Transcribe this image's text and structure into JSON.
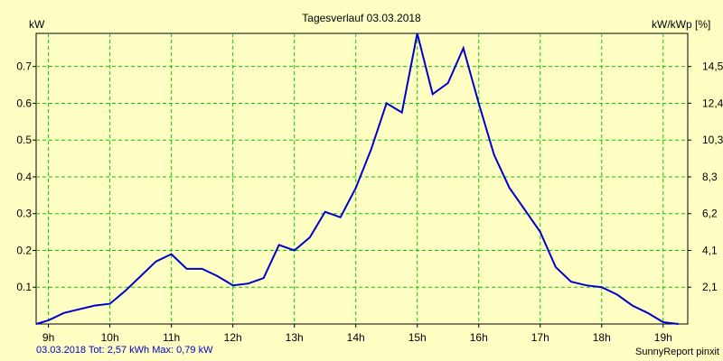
{
  "chart_data": {
    "type": "line",
    "title": "Tagesverlauf 03.03.2018",
    "ylabel_left": "kW",
    "ylabel_right": "kW/kWp [%]",
    "x_ticks": [
      "9h",
      "10h",
      "11h",
      "12h",
      "13h",
      "14h",
      "15h",
      "16h",
      "17h",
      "18h",
      "19h"
    ],
    "x_range_hours": [
      8.8,
      19.4
    ],
    "y_left_ticks": [
      "0.1",
      "0.2",
      "0.3",
      "0.4",
      "0.5",
      "0.6",
      "0.7"
    ],
    "y_left_range": [
      0,
      0.79
    ],
    "y_right_ticks": [
      "2,1",
      "4,1",
      "6,2",
      "8,3",
      "10,3",
      "12,4",
      "14,5"
    ],
    "grid": true,
    "series_color": "#0000cc",
    "grid_color": "#00cc00",
    "series": [
      {
        "x": [
          8.8,
          9.0,
          9.25,
          9.5,
          9.75,
          10.0,
          10.25,
          10.5,
          10.75,
          11.0,
          11.25,
          11.5,
          11.75,
          12.0,
          12.25,
          12.5,
          12.75,
          13.0,
          13.25,
          13.5,
          13.75,
          14.0,
          14.25,
          14.5,
          14.75,
          15.0,
          15.25,
          15.5,
          15.75,
          16.0,
          16.25,
          16.5,
          16.75,
          17.0,
          17.25,
          17.5,
          17.75,
          18.0,
          18.25,
          18.5,
          18.75,
          19.0,
          19.25
        ],
        "y": [
          0.0,
          0.01,
          0.03,
          0.04,
          0.05,
          0.055,
          0.09,
          0.13,
          0.17,
          0.19,
          0.15,
          0.15,
          0.13,
          0.105,
          0.11,
          0.125,
          0.215,
          0.2,
          0.235,
          0.305,
          0.29,
          0.37,
          0.475,
          0.6,
          0.575,
          0.79,
          0.625,
          0.655,
          0.75,
          0.6,
          0.46,
          0.37,
          0.31,
          0.25,
          0.155,
          0.115,
          0.105,
          0.1,
          0.08,
          0.05,
          0.03,
          0.005,
          0.0
        ]
      }
    ]
  },
  "footer": {
    "left": "03.03.2018 Tot: 2,57 kWh Max: 0,79 kW",
    "right": "SunnyReport pinxit"
  }
}
